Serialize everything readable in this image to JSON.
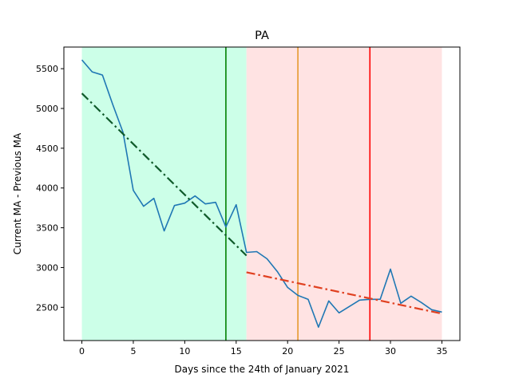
{
  "chart_data": {
    "type": "line",
    "title": "PA",
    "xlabel": "Days since the 24th of January 2021",
    "ylabel": "Current MA - Previous MA",
    "xlim": [
      -1.75,
      36.75
    ],
    "ylim": [
      2082,
      5772
    ],
    "grid": false,
    "xticks": [
      0,
      5,
      10,
      15,
      20,
      25,
      30,
      35
    ],
    "yticks": [
      2500,
      3000,
      3500,
      4000,
      4500,
      5000,
      5500
    ],
    "shaded_regions": [
      {
        "x_start": 0,
        "x_end": 16,
        "color": "#ccffe8"
      },
      {
        "x_start": 16,
        "x_end": 35,
        "color": "#ffe3e3"
      }
    ],
    "vertical_lines": [
      {
        "x": 14,
        "color": "#008000"
      },
      {
        "x": 21,
        "color": "#e69a2e"
      },
      {
        "x": 28,
        "color": "#ff0000"
      }
    ],
    "series": [
      {
        "x": [
          0,
          1,
          2,
          3,
          4,
          5,
          6,
          7,
          8,
          9,
          10,
          11,
          12,
          13,
          14,
          15,
          16,
          17,
          18,
          19,
          20,
          21,
          22,
          23,
          24,
          25,
          26,
          27,
          28,
          29,
          30,
          31,
          32,
          33,
          34,
          35
        ],
        "y": [
          5610,
          5460,
          5420,
          5050,
          4700,
          3970,
          3770,
          3870,
          3460,
          3780,
          3810,
          3900,
          3800,
          3820,
          3510,
          3790,
          3190,
          3200,
          3110,
          2950,
          2750,
          2650,
          2600,
          2250,
          2580,
          2430,
          2510,
          2590,
          2600,
          2600,
          2980,
          2550,
          2640,
          2560,
          2470,
          2440
        ],
        "color": "#1f77b4",
        "style": "solid"
      },
      {
        "x": [
          0,
          16
        ],
        "y": [
          5190,
          3150
        ],
        "color": "#0f5a2a",
        "style": "dashdot"
      },
      {
        "x": [
          16,
          35
        ],
        "y": [
          2940,
          2420
        ],
        "color": "#e04020",
        "style": "dashdot"
      }
    ]
  }
}
